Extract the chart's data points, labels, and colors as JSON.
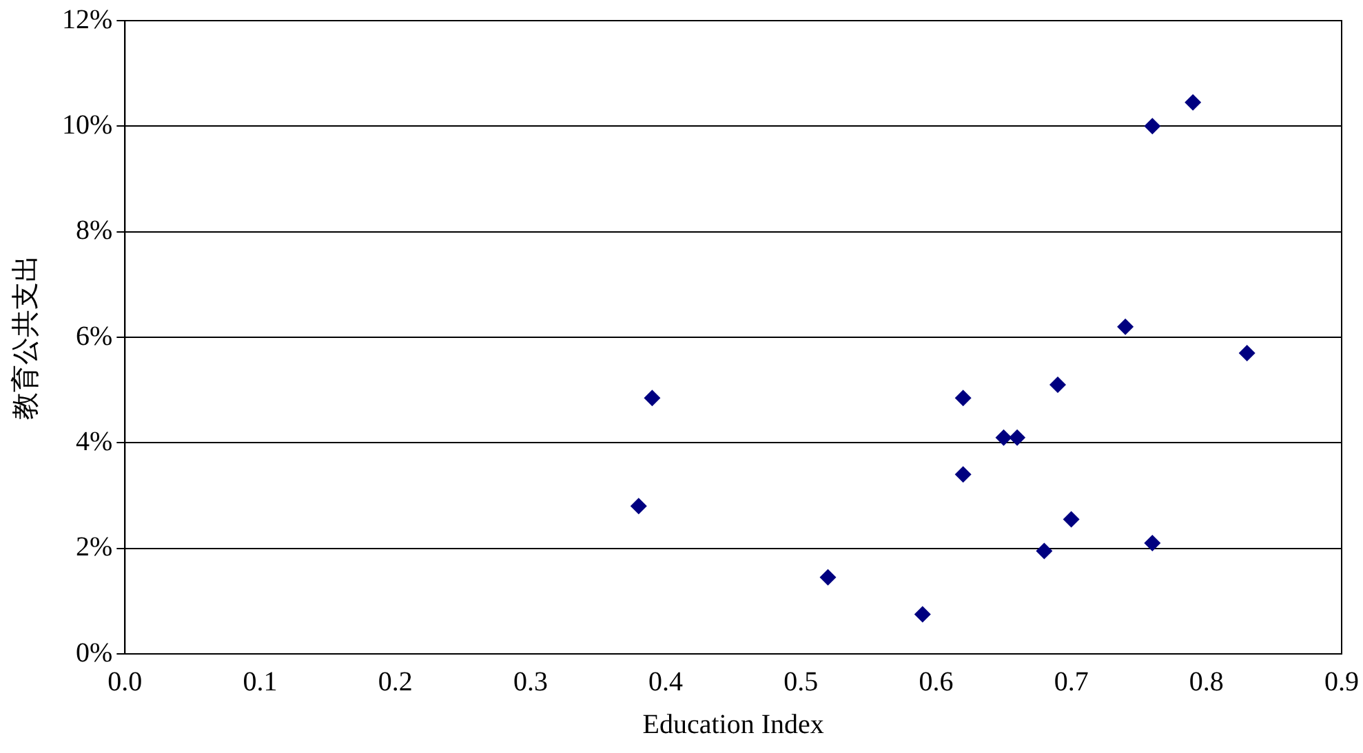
{
  "chart_data": {
    "type": "scatter",
    "xlabel": "Education Index",
    "ylabel": "教育公共支出",
    "x": [
      0.38,
      0.39,
      0.52,
      0.59,
      0.62,
      0.62,
      0.65,
      0.66,
      0.68,
      0.69,
      0.7,
      0.74,
      0.76,
      0.76,
      0.79,
      0.83
    ],
    "values": [
      2.8,
      4.85,
      1.45,
      0.75,
      4.85,
      3.4,
      4.1,
      4.1,
      1.95,
      5.1,
      2.55,
      6.2,
      10.0,
      2.1,
      10.45,
      5.7
    ],
    "color": "#000080",
    "marker": "diamond",
    "grid": "y",
    "legend": false,
    "xlim": [
      0,
      0.9
    ],
    "xticks": [
      {
        "value": 0,
        "label": "0.0"
      },
      0.1,
      0.2,
      0.3,
      0.4,
      0.5,
      0.6,
      0.7,
      0.8,
      0.9
    ],
    "ylim": [
      0,
      12
    ],
    "yticks": [
      {
        "value": 0,
        "label": "0%"
      },
      {
        "value": 2,
        "label": "2%"
      },
      {
        "value": 4,
        "label": "4%"
      },
      {
        "value": 6,
        "label": "6%"
      },
      {
        "value": 8,
        "label": "8%"
      },
      {
        "value": 10,
        "label": "10%"
      },
      {
        "value": 12,
        "label": "12%"
      }
    ]
  }
}
